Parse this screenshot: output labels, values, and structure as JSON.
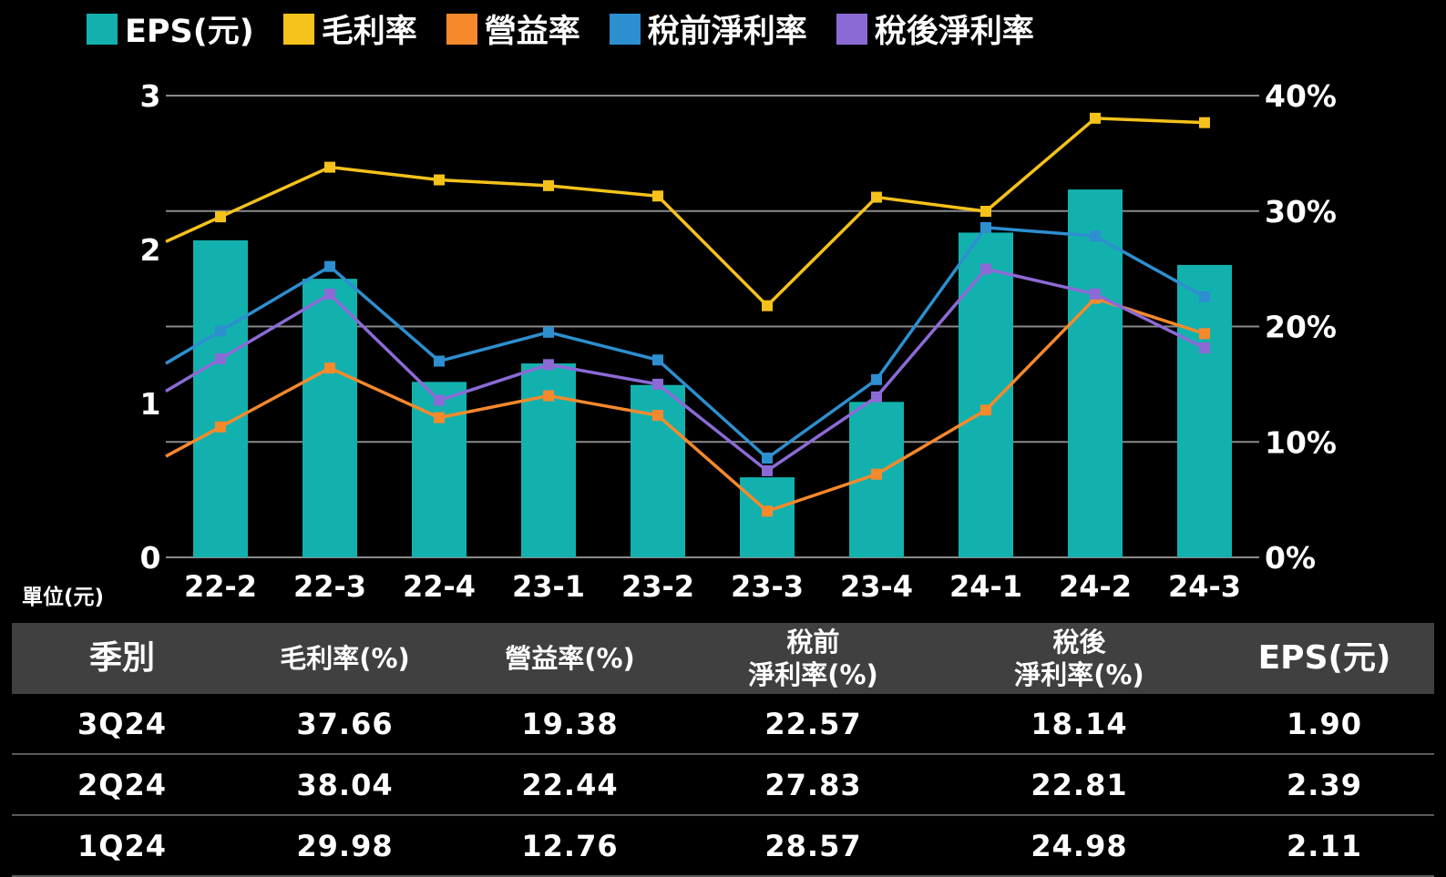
{
  "legend": [
    {
      "label": "EPS(元)",
      "color": "#13b1ae"
    },
    {
      "label": "毛利率",
      "color": "#f5c21b"
    },
    {
      "label": "營益率",
      "color": "#f5892c"
    },
    {
      "label": "稅前淨利率",
      "color": "#2d8fd0"
    },
    {
      "label": "稅後淨利率",
      "color": "#8c6ad6"
    }
  ],
  "unit_label": "單位(元)",
  "chart_data": {
    "type": "bar+line",
    "categories": [
      "22-2",
      "22-3",
      "22-4",
      "23-1",
      "23-2",
      "23-3",
      "23-4",
      "24-1",
      "24-2",
      "24-3"
    ],
    "left_axis": {
      "ylim": [
        0,
        3
      ],
      "ticks": [
        "0",
        "1",
        "2",
        "3"
      ]
    },
    "right_axis": {
      "ylim": [
        0,
        40
      ],
      "ticks": [
        "0%",
        "10%",
        "20%",
        "30%",
        "40%"
      ]
    },
    "grid": true,
    "legend_position": "top",
    "bars": {
      "name": "EPS(元)",
      "color": "#13b1ae",
      "values": [
        2.06,
        1.81,
        1.14,
        1.26,
        1.12,
        0.52,
        1.01,
        2.11,
        2.39,
        1.9
      ]
    },
    "series": [
      {
        "name": "毛利率",
        "color": "#f5c21b",
        "values": [
          29.5,
          33.8,
          32.7,
          32.2,
          31.3,
          21.8,
          31.2,
          29.98,
          38.04,
          37.66
        ]
      },
      {
        "name": "營益率",
        "color": "#f5892c",
        "values": [
          11.3,
          16.4,
          12.1,
          14.0,
          12.3,
          4.0,
          7.2,
          12.76,
          22.44,
          19.38
        ]
      },
      {
        "name": "稅前淨利率",
        "color": "#2d8fd0",
        "values": [
          19.6,
          25.2,
          17.0,
          19.5,
          17.1,
          8.6,
          15.4,
          28.57,
          27.83,
          22.57
        ]
      },
      {
        "name": "稅後淨利率",
        "color": "#8c6ad6",
        "values": [
          17.2,
          22.8,
          13.6,
          16.7,
          15.0,
          7.5,
          13.9,
          24.98,
          22.81,
          18.14
        ]
      }
    ]
  },
  "table": {
    "headers": [
      {
        "line1": "季別",
        "line2": ""
      },
      {
        "line1": "毛利率(%)",
        "line2": ""
      },
      {
        "line1": "營益率(%)",
        "line2": ""
      },
      {
        "line1": "稅前",
        "line2": "淨利率(%)"
      },
      {
        "line1": "稅後",
        "line2": "淨利率(%)"
      },
      {
        "line1": "EPS(元)",
        "line2": ""
      }
    ],
    "rows": [
      [
        "3Q24",
        "37.66",
        "19.38",
        "22.57",
        "18.14",
        "1.90"
      ],
      [
        "2Q24",
        "38.04",
        "22.44",
        "27.83",
        "22.81",
        "2.39"
      ],
      [
        "1Q24",
        "29.98",
        "12.76",
        "28.57",
        "24.98",
        "2.11"
      ]
    ]
  }
}
